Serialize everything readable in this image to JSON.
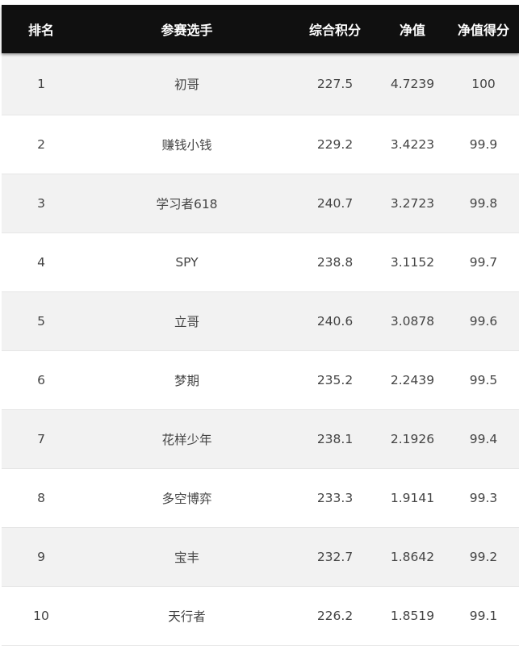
{
  "headers": {
    "rank": "排名",
    "player": "参赛选手",
    "score": "综合积分",
    "nav": "净值",
    "nav_score": "净值得分"
  },
  "rows": [
    {
      "rank": "1",
      "player": "初哥",
      "score": "227.5",
      "nav": "4.7239",
      "nav_score": "100"
    },
    {
      "rank": "2",
      "player": "赚钱小钱",
      "score": "229.2",
      "nav": "3.4223",
      "nav_score": "99.9"
    },
    {
      "rank": "3",
      "player": "学习者618",
      "score": "240.7",
      "nav": "3.2723",
      "nav_score": "99.8"
    },
    {
      "rank": "4",
      "player": "SPY",
      "score": "238.8",
      "nav": "3.1152",
      "nav_score": "99.7"
    },
    {
      "rank": "5",
      "player": "立哥",
      "score": "240.6",
      "nav": "3.0878",
      "nav_score": "99.6"
    },
    {
      "rank": "6",
      "player": "梦期",
      "score": "235.2",
      "nav": "2.2439",
      "nav_score": "99.5"
    },
    {
      "rank": "7",
      "player": "花样少年",
      "score": "238.1",
      "nav": "2.1926",
      "nav_score": "99.4"
    },
    {
      "rank": "8",
      "player": "多空博弈",
      "score": "233.3",
      "nav": "1.9141",
      "nav_score": "99.3"
    },
    {
      "rank": "9",
      "player": "宝丰",
      "score": "232.7",
      "nav": "1.8642",
      "nav_score": "99.2"
    },
    {
      "rank": "10",
      "player": "天行者",
      "score": "226.2",
      "nav": "1.8519",
      "nav_score": "99.1"
    }
  ]
}
